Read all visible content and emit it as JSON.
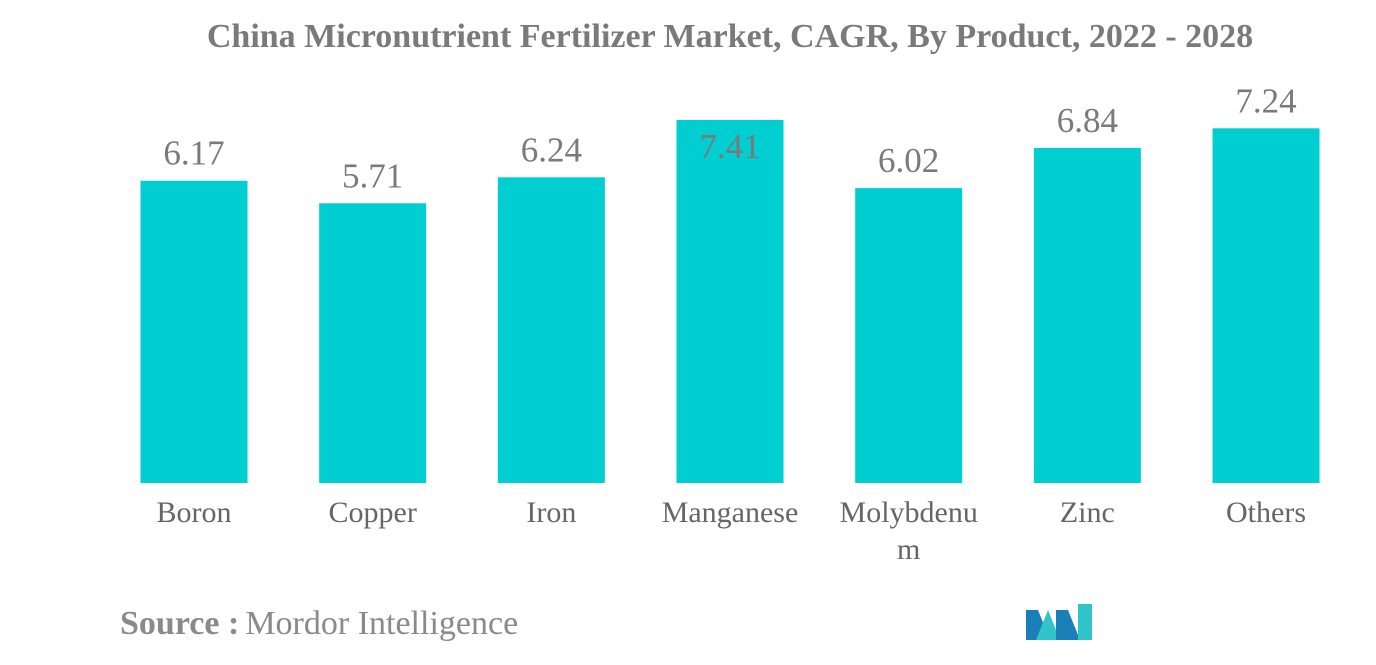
{
  "chart_data": {
    "type": "bar",
    "title": "China Micronutrient Fertilizer Market, CAGR, By Product, 2022 - 2028",
    "categories": [
      "Boron",
      "Copper",
      "Iron",
      "Manganese",
      "Molybdenum",
      "Zinc",
      "Others"
    ],
    "values": [
      6.17,
      5.71,
      6.24,
      7.41,
      6.02,
      6.84,
      7.24
    ],
    "value_labels": [
      "6.17",
      "5.71",
      "6.24",
      "7.41",
      "6.02",
      "6.84",
      "7.24"
    ],
    "xlabel": "",
    "ylabel": "",
    "ylim": [
      0,
      7.41
    ],
    "grid": false,
    "legend": "none",
    "bar_color": "#00ced1",
    "text_color": "#7a7a7a"
  },
  "source": {
    "label": "Source :",
    "value": "Mordor Intelligence"
  },
  "logo": {
    "icon": "mordor-intelligence-logo",
    "colors": [
      "#1a7fb8",
      "#2fc4c9"
    ]
  }
}
